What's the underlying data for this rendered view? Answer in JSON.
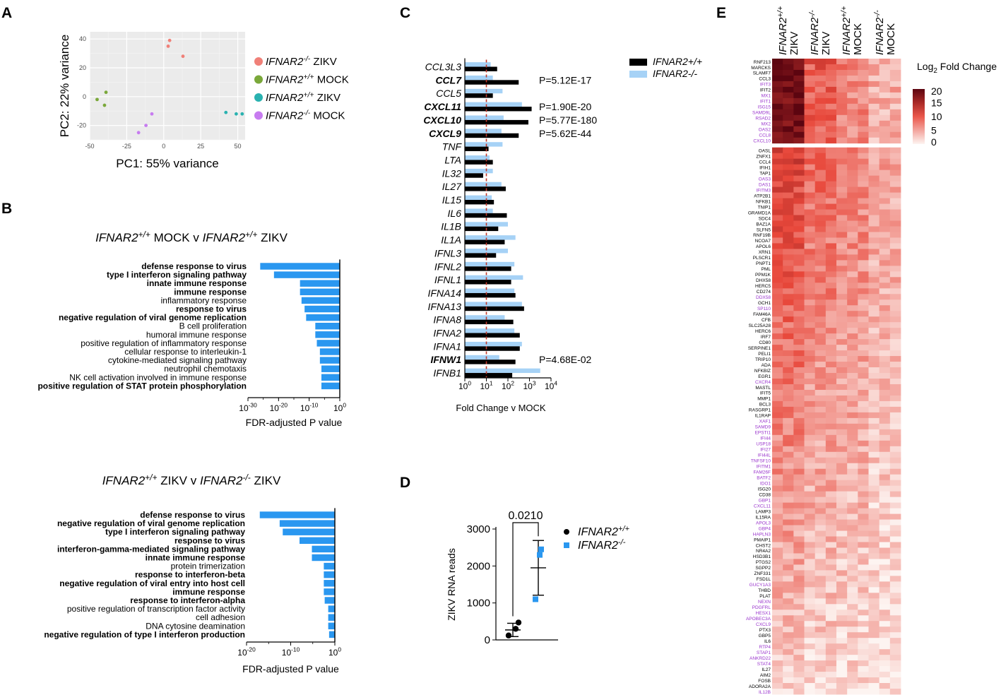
{
  "panel_letters": [
    "A",
    "B",
    "C",
    "D",
    "E"
  ],
  "chart_data": [
    {
      "panel": "A",
      "type": "scatter",
      "xlabel": "PC1: 55% variance",
      "ylabel": "PC2: 22% variance",
      "xlim": [
        -50,
        55
      ],
      "ylim": [
        -30,
        45
      ],
      "xticks": [
        -50,
        -25,
        0,
        25,
        50
      ],
      "yticks": [
        -20,
        0,
        20,
        40
      ],
      "grid": true,
      "legend_position": "right",
      "series": [
        {
          "name": "IFNAR2-/- ZIKV",
          "label_gene": "IFNAR2",
          "label_sup": "-/-",
          "label_rest": " ZIKV",
          "color": "#f08078",
          "points": [
            [
              4,
              39
            ],
            [
              3,
              35
            ],
            [
              13,
              28
            ]
          ]
        },
        {
          "name": "IFNAR2+/+ MOCK",
          "label_gene": "IFNAR2",
          "label_sup": "+/+",
          "label_rest": " MOCK",
          "color": "#7aa83a",
          "points": [
            [
              -45,
              -2
            ],
            [
              -39,
              3
            ],
            [
              -40,
              -6
            ]
          ]
        },
        {
          "name": "IFNAR2+/+ ZIKV",
          "label_gene": "IFNAR2",
          "label_sup": "+/+",
          "label_rest": " ZIKV",
          "color": "#2ab2b0",
          "points": [
            [
              42,
              -11
            ],
            [
              49,
              -12
            ],
            [
              53,
              -12
            ]
          ]
        },
        {
          "name": "IFNAR2-/- MOCK",
          "label_gene": "IFNAR2",
          "label_sup": "-/-",
          "label_rest": " MOCK",
          "color": "#c77cf0",
          "points": [
            [
              -17,
              -25
            ],
            [
              -12,
              -20
            ],
            [
              -8,
              -12
            ]
          ]
        }
      ]
    },
    {
      "panel": "B-top",
      "type": "bar",
      "orientation": "horizontal",
      "title_parts": [
        [
          "IFNAR2",
          "+/+",
          " MOCK v "
        ],
        [
          "IFNAR2",
          "+/+",
          " ZIKV"
        ]
      ],
      "xlabel": "FDR-adjusted P value",
      "xscale": "log10",
      "xlim_exp": [
        -30,
        0
      ],
      "xticks_exp": [
        -30,
        -20,
        -10,
        0
      ],
      "categories": [
        "defense response to virus",
        "type I interferon signaling pathway",
        "innate immune response",
        "immune response",
        "inflammatory response",
        "response to virus",
        "negative regulation of viral genome replication",
        "B cell proliferation",
        "humoral immune response",
        "positive regulation of inflammatory response",
        "cellular response to interleukin-1",
        "cytokine-mediated signaling pathway",
        "neutrophil chemotaxis",
        "NK cell activation involved in immune response",
        "positive regulation of STAT protein phosphorylation"
      ],
      "bold": [
        true,
        true,
        true,
        true,
        false,
        true,
        true,
        false,
        false,
        false,
        false,
        false,
        false,
        false,
        true
      ],
      "values_log10": [
        -26,
        -21.5,
        -13,
        -13,
        -12.5,
        -11.5,
        -11,
        -8,
        -8,
        -7.5,
        -6.5,
        -6.5,
        -6,
        -6,
        -6
      ],
      "color": "#2a97f0"
    },
    {
      "panel": "B-bottom",
      "type": "bar",
      "orientation": "horizontal",
      "title_parts": [
        [
          "IFNAR2",
          "+/+",
          " ZIKV v "
        ],
        [
          "IFNAR2",
          "-/-",
          " ZIKV"
        ]
      ],
      "xlabel": "FDR-adjusted P value",
      "xscale": "log10",
      "xlim_exp": [
        -20,
        0
      ],
      "xticks_exp": [
        -20,
        -10,
        0
      ],
      "categories": [
        "defense response to virus",
        "negative regulation of viral genome replication",
        "type I interferon signaling pathway",
        "response to virus",
        "interferon-gamma-mediated signaling pathway",
        "innate immune response",
        "protein trimerization",
        "response to interferon-beta",
        "negative regulation of viral entry into host cell",
        "immune response",
        "response to interferon-alpha",
        "positive regulation of transcription factor activity",
        "cell adhesion",
        "DNA cytosine deamination",
        "negative regulation of type I interferon production"
      ],
      "bold": [
        true,
        true,
        true,
        true,
        true,
        true,
        false,
        true,
        true,
        true,
        true,
        false,
        false,
        false,
        true
      ],
      "values_log10": [
        -17,
        -12.5,
        -11.8,
        -8,
        -5.2,
        -5.2,
        -2.5,
        -2.5,
        -2.5,
        -2.5,
        -2.3,
        -1.5,
        -1.5,
        -1.5,
        -1.3
      ],
      "color": "#2a97f0"
    },
    {
      "panel": "C",
      "type": "bar",
      "orientation": "horizontal",
      "xlabel": "Fold Change v MOCK",
      "xscale": "log10",
      "xlim_exp": [
        0,
        4
      ],
      "xticks_exp": [
        0,
        1,
        2,
        3,
        4
      ],
      "reference_line": 10,
      "categories": [
        "CCL3L3",
        "CCL7",
        "CCL5",
        "CXCL11",
        "CXCL10",
        "CXCL9",
        "TNF",
        "LTA",
        "IL32",
        "IL27",
        "IL15",
        "IL6",
        "IL1B",
        "IL1A",
        "IFNL3",
        "IFNL2",
        "IFNL1",
        "IFNA14",
        "IFNA13",
        "IFNA8",
        "IFNA2",
        "IFNA1",
        "IFNW1",
        "IFNB1"
      ],
      "bold": [
        false,
        true,
        false,
        true,
        true,
        true,
        false,
        false,
        false,
        false,
        false,
        false,
        false,
        false,
        false,
        false,
        false,
        false,
        false,
        false,
        false,
        false,
        true,
        false
      ],
      "series": [
        {
          "name": "IFNAR2+/+",
          "color": "#000000",
          "values_log10": [
            1.5,
            2.5,
            1.3,
            3.1,
            2.95,
            2.5,
            1.1,
            1.3,
            0.85,
            1.9,
            1.35,
            1.95,
            1.55,
            1.85,
            1.45,
            2.15,
            2.15,
            2.35,
            2.75,
            2.25,
            2.55,
            2.55,
            2.35,
            2.2
          ]
        },
        {
          "name": "IFNAR2-/-",
          "color": "#a6d2f6",
          "values_log10": [
            1.2,
            1.3,
            1.75,
            2.65,
            1.8,
            1.7,
            1.75,
            1.15,
            1.3,
            1.7,
            1.25,
            1.3,
            2.0,
            2.35,
            2.0,
            2.3,
            2.7,
            2.3,
            2.65,
            1.85,
            2.3,
            2.65,
            1.6,
            3.5
          ]
        }
      ],
      "annotations": [
        {
          "category": "CCL7",
          "text": "P=5.12E-17"
        },
        {
          "category": "CXCL11",
          "text": "P=1.90E-20"
        },
        {
          "category": "CXCL10",
          "text": "P=5.77E-180"
        },
        {
          "category": "CXCL9",
          "text": "P=5.62E-44"
        },
        {
          "category": "IFNW1",
          "text": "P=4.68E-02"
        }
      ]
    },
    {
      "panel": "D",
      "type": "scatter",
      "ylabel": "ZIKV RNA reads",
      "ylim": [
        0,
        3000
      ],
      "yticks": [
        0,
        1000,
        2000,
        3000
      ],
      "pvalue": "0.0210",
      "series": [
        {
          "name": "IFNAR2+/+",
          "label_gene": "IFNAR2",
          "label_sup": "+/+",
          "color": "#000000",
          "marker": "circle",
          "values": [
            120,
            300,
            470
          ],
          "mean": 270,
          "sd": 180
        },
        {
          "name": "IFNAR2-/-",
          "label_gene": "IFNAR2",
          "label_sup": "-/-",
          "color": "#2a97f0",
          "marker": "square",
          "values": [
            1100,
            2300,
            2450
          ],
          "mean": 1950,
          "sd": 740
        }
      ]
    },
    {
      "panel": "E",
      "type": "heatmap",
      "colorbar_title": "Log",
      "colorbar_sub": "2",
      "colorbar_rest": " Fold Change",
      "colorbar_ticks": [
        0,
        5,
        10,
        15,
        20
      ],
      "columns": [
        {
          "gene": "IFNAR2",
          "sup": "+/+",
          "cond": "ZIKV"
        },
        {
          "gene": "IFNAR2",
          "sup": "-/-",
          "cond": "ZIKV"
        },
        {
          "gene": "IFNAR2",
          "sup": "+/+",
          "cond": "MOCK"
        },
        {
          "gene": "IFNAR2",
          "sup": "-/-",
          "cond": "MOCK"
        }
      ],
      "row_groups": [
        [
          "RNF213",
          "MARCKS",
          "SLAMF7",
          "CCL3",
          "IFIT3",
          "IFIT2",
          "MX1",
          "IFIT1",
          "ISG15",
          "SAMD9L",
          "RSAD2",
          "MX2",
          "OAS2",
          "CCL8",
          "CXCL10"
        ],
        [
          "OASL",
          "ZNFX1",
          "CCL4",
          "IFIH1",
          "TAP1",
          "OAS3",
          "DAS1",
          "IFITM3",
          "ATP2B1",
          "NFKB1",
          "TNIP1",
          "GRAMD1A",
          "SDC4",
          "BAZ1A",
          "SLFN5",
          "RNF19B",
          "NCOA7",
          "APOL6",
          "XRN1",
          "PLSCR1",
          "PNPT1",
          "PML",
          "PPM1K",
          "DHX58",
          "HERC5",
          "CD274",
          "DDX58",
          "GCH1",
          "SP110",
          "FAM46A",
          "CFB",
          "SLC25A28",
          "HERC6",
          "IRF7",
          "CD80",
          "SERPINE1",
          "PELI1",
          "TRIP10",
          "ADA",
          "NFKBIZ",
          "EGR1",
          "CXCR4",
          "MASTL",
          "IFIT5",
          "MMP1",
          "BCL3",
          "RASGRP1",
          "IL1RAP",
          "XAF1",
          "SAMD9",
          "EPSTI1",
          "IFI44",
          "USP18",
          "IFI27",
          "IFI44L",
          "TNFSF10",
          "IFITM1",
          "FAM26F",
          "BATF2",
          "IDO1",
          "ISG20",
          "CD38",
          "GBP1",
          "CXCL11",
          "LAMP3",
          "IL15RA",
          "APOL3",
          "GBP4",
          "HAPLN3",
          "PMAIP1",
          "CHST2",
          "NR4A2",
          "HSD3B1",
          "PTGS2",
          "SGPP2",
          "ZNF331",
          "FSD1L",
          "GUCY1A3",
          "THBD",
          "PLAT",
          "NEXN",
          "PDGFRL",
          "HESX1",
          "APOBEC3A",
          "CXCL9",
          "PTX3",
          "GBP5",
          "IL6",
          "RTP4",
          "STAP1",
          "ANKRD22",
          "STAT4",
          "IL27",
          "AIM2",
          "FOSB",
          "ADORA2A",
          "IL12B"
        ]
      ],
      "purple_genes": [
        "IFIT3",
        "MX1",
        "IFIT1",
        "ISG15",
        "SAMD9L",
        "RSAD2",
        "MX2",
        "OAS2",
        "CCL8",
        "CXCL10",
        "OAS3",
        "DAS1",
        "IFITM3",
        "DDX58",
        "SP110",
        "CXCR4",
        "XAF1",
        "SAMD9",
        "EPSTI1",
        "IFI44",
        "USP18",
        "IFI27",
        "IFI44L",
        "TNFSF10",
        "IFITM1",
        "FAM26F",
        "BATF2",
        "IDO1",
        "GBP1",
        "CXCL11",
        "APOL3",
        "GBP4",
        "HAPLN3",
        "GUCY1A3",
        "NEXN",
        "PDGFRL",
        "HESX1",
        "APOBEC3A",
        "CXCL9",
        "RTP4",
        "STAP1",
        "ANKRD22",
        "STAT4",
        "IL12B"
      ],
      "colors": {
        "low": "#fdf4f1",
        "mid": "#e8473a",
        "high": "#5c0510",
        "gene_black": "#000000",
        "gene_purple": "#9933cc"
      }
    }
  ]
}
